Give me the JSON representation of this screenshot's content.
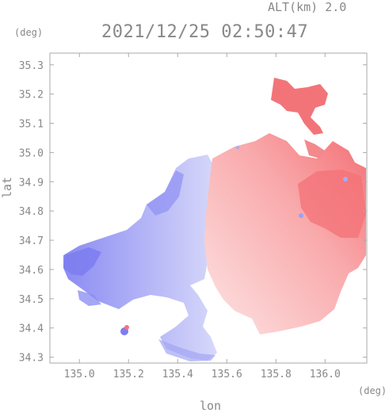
{
  "header": {
    "altitude_label": "ALT(km) 2.0",
    "timestamp": "2021/12/25 02:50:47"
  },
  "axes": {
    "x_title": "lon",
    "y_title": "lat",
    "x_unit": "(deg)",
    "y_unit": "(deg)",
    "x_ticks": [
      "135.0",
      "135.2",
      "135.4",
      "135.6",
      "135.8",
      "136.0"
    ],
    "y_ticks": [
      "35.3",
      "35.2",
      "35.1",
      "35.0",
      "34.9",
      "34.8",
      "34.7",
      "34.6",
      "34.5",
      "34.4",
      "34.3"
    ],
    "x_range": [
      134.88,
      136.17
    ],
    "y_range": [
      34.28,
      35.34
    ]
  },
  "colors": {
    "approaching": "#7b7cf2",
    "receding": "#f26e73",
    "frame": "#aaaaaa",
    "text": "#888888"
  }
}
